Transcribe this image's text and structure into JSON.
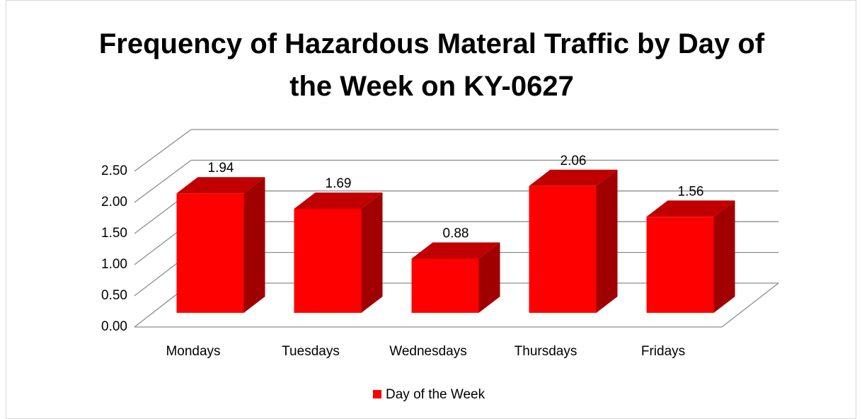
{
  "chart_data": {
    "type": "bar3d",
    "title": "Frequency of Hazardous Materal Traffic by Day of the Week on KY-0627",
    "categories": [
      "Mondays",
      "Tuesdays",
      "Wednesdays",
      "Thursdays",
      "Fridays"
    ],
    "series": [
      {
        "name": "Day of the Week",
        "color": "#ff0000",
        "values": [
          1.94,
          1.69,
          0.88,
          2.06,
          1.56
        ]
      }
    ],
    "ylim": [
      0,
      2.5
    ],
    "yticks": [
      {
        "value": 0,
        "label": "0.00"
      },
      {
        "value": 0.5,
        "label": "0.50"
      },
      {
        "value": 1,
        "label": "1.00"
      },
      {
        "value": 1.5,
        "label": "1.50"
      },
      {
        "value": 2,
        "label": "2.00"
      },
      {
        "value": 2.5,
        "label": "2.50"
      }
    ],
    "grid": true,
    "legend": "bottom"
  }
}
